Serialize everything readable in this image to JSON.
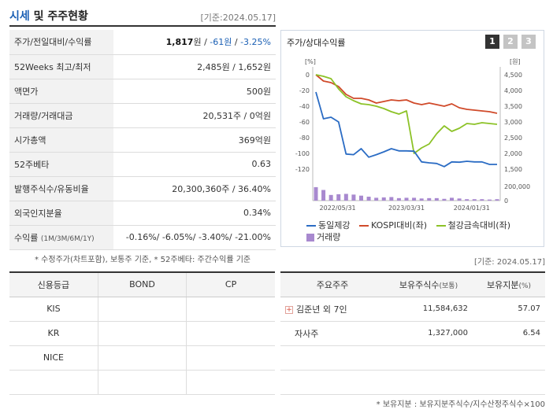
{
  "header": {
    "title_accent": "시세",
    "title_rest": " 및 주주현황",
    "date": "[기준:2024.05.17]"
  },
  "info_rows": [
    {
      "label": "주가/전일대비/수익률",
      "value": {
        "price": "1,817",
        "unit": "원",
        "sep1": " / ",
        "change": "-61원",
        "sep2": " / ",
        "rate": "-3.25%"
      }
    },
    {
      "label": "52Weeks 최고/최저",
      "value": "2,485원 / 1,652원"
    },
    {
      "label": "액면가",
      "value": "500원"
    },
    {
      "label": "거래량/거래대금",
      "value": "20,531주 / 0억원"
    },
    {
      "label": "시가총액",
      "value": "369억원"
    },
    {
      "label": "52주베타",
      "value": "0.63"
    },
    {
      "label": "발행주식수/유동비율",
      "value": "20,300,360주 / 36.40%"
    },
    {
      "label": "외국인지분율",
      "value": "0.34%"
    },
    {
      "label": "수익률",
      "label_sub": "(1M/3M/6M/1Y)",
      "value": "-0.16%/ -6.05%/ -3.40%/ -21.00%"
    }
  ],
  "info_note": "* 수정주가(차트포함), 보통주 기준, * 52주베타: 주간수익률 기준",
  "chart_panel": {
    "title": "주가/상대수익률",
    "tabs": [
      "1",
      "2",
      "3"
    ],
    "active_tab": 0
  },
  "chart_data": {
    "type": "line",
    "left_axis": {
      "label": "[%]",
      "ticks": [
        "0",
        "-20",
        "-40",
        "-60",
        "-80",
        "-100",
        "-120"
      ],
      "range": [
        -130,
        0
      ]
    },
    "right_axis": {
      "label": "[원]",
      "ticks": [
        "4,500",
        "4,000",
        "3,500",
        "3,000",
        "2,500",
        "2,000",
        "1,500"
      ],
      "range": [
        1200,
        4500
      ]
    },
    "volume_axis": {
      "ticks": [
        "200,000",
        "0"
      ],
      "range": [
        0,
        200000
      ]
    },
    "x_ticks": [
      "2022/05/31",
      "2023/03/31",
      "2024/01/31"
    ],
    "series": [
      {
        "name": "동일제강",
        "axis": "right",
        "color": "#2b6cc4",
        "x": [
          0,
          1,
          2,
          3,
          4,
          5,
          6,
          7,
          8,
          9,
          10,
          11,
          12,
          13,
          14,
          15,
          16,
          17,
          18,
          19,
          20,
          21,
          22,
          23,
          24
        ],
        "values": [
          3950,
          3100,
          3150,
          3000,
          1980,
          1960,
          2150,
          1880,
          1960,
          2050,
          2150,
          2080,
          2080,
          2070,
          1730,
          1700,
          1680,
          1580,
          1730,
          1720,
          1750,
          1730,
          1730,
          1650,
          1650
        ]
      },
      {
        "name": "KOSPI대비(좌)",
        "axis": "left",
        "color": "#d04a2a",
        "x": [
          0,
          1,
          2,
          3,
          4,
          5,
          6,
          7,
          8,
          9,
          10,
          11,
          12,
          13,
          14,
          15,
          16,
          17,
          18,
          19,
          20,
          21,
          22,
          23,
          24
        ],
        "values": [
          0,
          -8,
          -10,
          -15,
          -25,
          -30,
          -30,
          -32,
          -36,
          -34,
          -32,
          -33,
          -32,
          -36,
          -38,
          -36,
          -38,
          -40,
          -37,
          -42,
          -44,
          -45,
          -46,
          -47,
          -49
        ]
      },
      {
        "name": "철강금속대비(좌)",
        "axis": "left",
        "color": "#8cc227",
        "x": [
          0,
          1,
          2,
          3,
          4,
          5,
          6,
          7,
          8,
          9,
          10,
          11,
          12,
          13,
          14,
          15,
          16,
          17,
          18,
          19,
          20,
          21,
          22,
          23,
          24
        ],
        "values": [
          0,
          -2,
          -5,
          -18,
          -28,
          -33,
          -37,
          -38,
          -40,
          -43,
          -47,
          -50,
          -46,
          -100,
          -93,
          -88,
          -75,
          -65,
          -72,
          -68,
          -62,
          -63,
          -61,
          -62,
          -63
        ]
      },
      {
        "name": "거래량",
        "axis": "volume",
        "type": "bar",
        "color": "#a889cf",
        "x": [
          0,
          1,
          2,
          3,
          4,
          5,
          6,
          7,
          8,
          9,
          10,
          11,
          12,
          13,
          14,
          15,
          16,
          17,
          18,
          19,
          20,
          21,
          22,
          23,
          24
        ],
        "values": [
          190000,
          150000,
          80000,
          90000,
          95000,
          85000,
          70000,
          55000,
          40000,
          45000,
          50000,
          35000,
          40000,
          40000,
          30000,
          35000,
          35000,
          25000,
          40000,
          30000,
          20000,
          20000,
          20000,
          15000,
          20000
        ]
      }
    ],
    "legend_placement": "bottom"
  },
  "chart_date": "[기준: 2024.05.17]",
  "grade_table": {
    "headers": [
      "신용등급",
      "BOND",
      "CP"
    ],
    "rows": [
      [
        "KIS",
        "",
        ""
      ],
      [
        "KR",
        "",
        ""
      ],
      [
        "NICE",
        "",
        ""
      ],
      [
        "",
        "",
        ""
      ]
    ]
  },
  "holder_table": {
    "headers": [
      "주요주주",
      "보유주식수",
      "(보통)",
      "보유지분",
      "(%)"
    ],
    "rows": [
      {
        "name": "김준년 외 7인",
        "shares": "11,584,632",
        "pct": "57.07",
        "expandable": true
      },
      {
        "name": "자사주",
        "shares": "1,327,000",
        "pct": "6.54",
        "expandable": false
      }
    ],
    "empty_rows": 2
  },
  "holder_note": "* 보유지분 : 보유지분주식수/지수산정주식수×100",
  "icons": {
    "expand": "plus-icon"
  }
}
